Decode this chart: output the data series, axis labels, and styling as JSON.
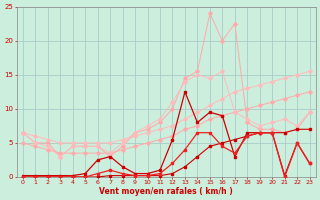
{
  "x": [
    0,
    1,
    2,
    3,
    4,
    5,
    6,
    7,
    8,
    9,
    10,
    11,
    12,
    13,
    14,
    15,
    16,
    17,
    18,
    19,
    20,
    21,
    22,
    23
  ],
  "line1_lightpink": [
    6.5,
    5.0,
    5.0,
    3.0,
    4.5,
    4.5,
    4.5,
    3.0,
    4.5,
    6.5,
    7.0,
    8.0,
    10.0,
    14.5,
    15.5,
    24.0,
    20.0,
    22.5,
    8.0,
    7.0,
    7.0,
    6.5,
    7.0,
    9.5
  ],
  "line2_pink": [
    6.5,
    5.0,
    4.5,
    3.0,
    4.5,
    4.5,
    4.5,
    3.5,
    5.0,
    6.5,
    7.5,
    8.5,
    11.0,
    14.0,
    15.0,
    14.5,
    15.5,
    9.5,
    8.5,
    7.5,
    8.0,
    8.5,
    7.5,
    9.5
  ],
  "line3_slope1": [
    6.5,
    6.0,
    5.5,
    5.0,
    5.0,
    5.0,
    5.0,
    5.0,
    5.5,
    6.0,
    6.5,
    7.0,
    7.5,
    8.5,
    9.5,
    10.5,
    11.5,
    12.5,
    13.0,
    13.5,
    14.0,
    14.5,
    15.0,
    15.5
  ],
  "line4_slope2": [
    5.0,
    4.5,
    4.0,
    3.5,
    3.5,
    3.5,
    3.5,
    3.5,
    4.0,
    4.5,
    5.0,
    5.5,
    6.0,
    7.0,
    7.5,
    8.5,
    9.0,
    9.5,
    10.0,
    10.5,
    11.0,
    11.5,
    12.0,
    12.5
  ],
  "line5_darkred": [
    0.2,
    0.2,
    0.2,
    0.2,
    0.2,
    0.5,
    2.5,
    3.0,
    1.5,
    0.5,
    0.5,
    1.0,
    5.5,
    12.5,
    8.0,
    9.5,
    9.0,
    3.0,
    6.5,
    6.5,
    6.5,
    0.2,
    5.0,
    2.0
  ],
  "line6_red": [
    0.0,
    0.0,
    0.0,
    0.0,
    0.0,
    0.0,
    0.5,
    1.0,
    0.5,
    0.2,
    0.2,
    0.5,
    2.0,
    4.0,
    6.5,
    6.5,
    4.5,
    3.5,
    6.0,
    6.5,
    6.5,
    0.0,
    5.0,
    2.0
  ],
  "line7_darkest": [
    0.0,
    0.0,
    0.0,
    0.0,
    0.0,
    0.0,
    0.0,
    0.2,
    0.2,
    0.2,
    0.2,
    0.2,
    0.5,
    1.5,
    3.0,
    4.5,
    5.0,
    5.5,
    6.0,
    6.5,
    6.5,
    6.5,
    7.0,
    7.0
  ],
  "ylim": [
    0,
    25
  ],
  "xlim": [
    -0.5,
    23.5
  ],
  "xlabel": "Vent moyen/en rafales ( km/h )",
  "yticks": [
    0,
    5,
    10,
    15,
    20,
    25
  ],
  "xticks": [
    0,
    1,
    2,
    3,
    4,
    5,
    6,
    7,
    8,
    9,
    10,
    11,
    12,
    13,
    14,
    15,
    16,
    17,
    18,
    19,
    20,
    21,
    22,
    23
  ],
  "bg_color": "#cceedd",
  "grid_color": "#aacccc",
  "line1_color": "#ffaaaa",
  "line2_color": "#ffbbbb",
  "line3_color": "#ffbbbb",
  "line4_color": "#ffaaaa",
  "line5_color": "#cc0000",
  "line6_color": "#ee2222",
  "line7_color": "#cc0000",
  "xlabel_color": "#cc0000",
  "tick_color": "#cc0000"
}
